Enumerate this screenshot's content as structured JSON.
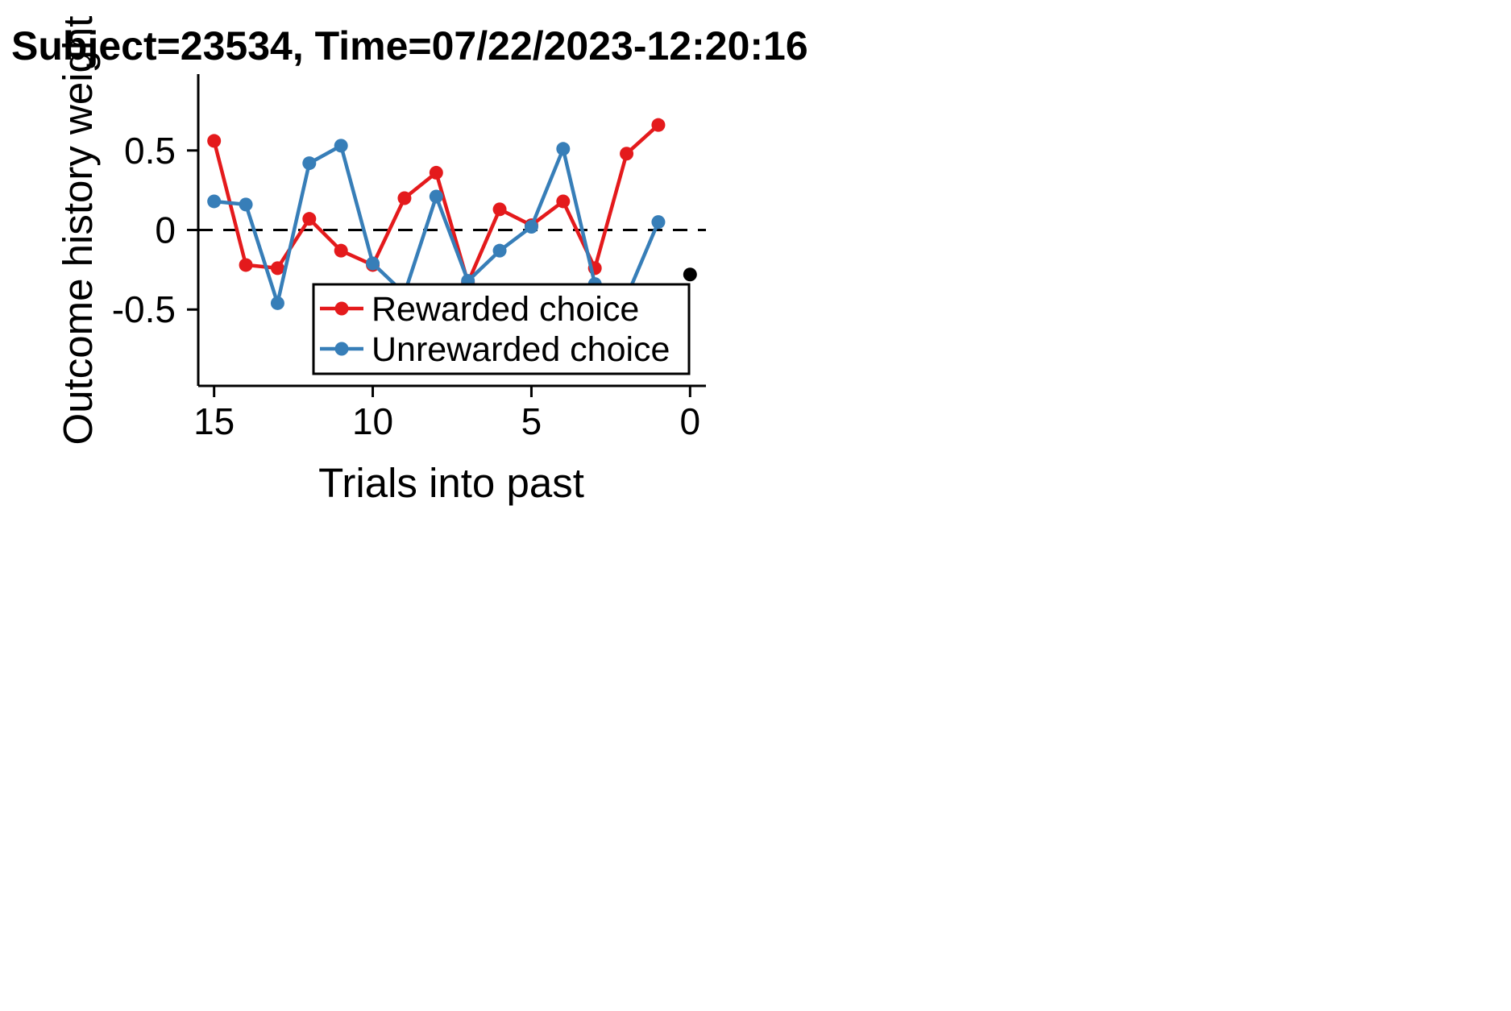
{
  "chart_data": {
    "type": "line",
    "title": "Subject=23534, Time=07/22/2023-12:20:16",
    "xlabel": "Trials into past",
    "ylabel": "Outcome history weight",
    "xlim": [
      15.5,
      -0.5
    ],
    "ylim": [
      -0.98,
      0.98
    ],
    "xticks": [
      15,
      10,
      5,
      0
    ],
    "xtick_labels": [
      "15",
      "10",
      "5",
      "0"
    ],
    "yticks": [
      0.5,
      0,
      -0.5
    ],
    "ytick_labels": [
      "0.5",
      "0",
      "-0.5"
    ],
    "grid": false,
    "zero_reference_line": {
      "y": 0,
      "style": "dashed",
      "color": "#000000"
    },
    "legend": {
      "position": "lower-right"
    },
    "series": [
      {
        "name": "Rewarded choice",
        "color": "#e41a1c",
        "x": [
          15,
          14,
          13,
          12,
          11,
          10,
          9,
          8,
          7,
          6,
          5,
          4,
          3,
          2,
          1
        ],
        "y": [
          0.56,
          -0.22,
          -0.24,
          0.07,
          -0.13,
          -0.22,
          0.2,
          0.36,
          -0.33,
          0.13,
          0.03,
          0.18,
          -0.24,
          0.48,
          0.66
        ]
      },
      {
        "name": "Unrewarded choice",
        "color": "#377eb8",
        "x": [
          15,
          14,
          13,
          12,
          11,
          10,
          9,
          8,
          7,
          6,
          5,
          4,
          3,
          2,
          1
        ],
        "y": [
          0.18,
          0.16,
          -0.46,
          0.42,
          0.53,
          -0.21,
          -0.4,
          0.21,
          -0.32,
          -0.13,
          0.02,
          0.51,
          -0.34,
          -0.42,
          0.05
        ]
      }
    ],
    "extra_points": [
      {
        "x": 0,
        "y": -0.28,
        "color": "#000000"
      }
    ]
  }
}
